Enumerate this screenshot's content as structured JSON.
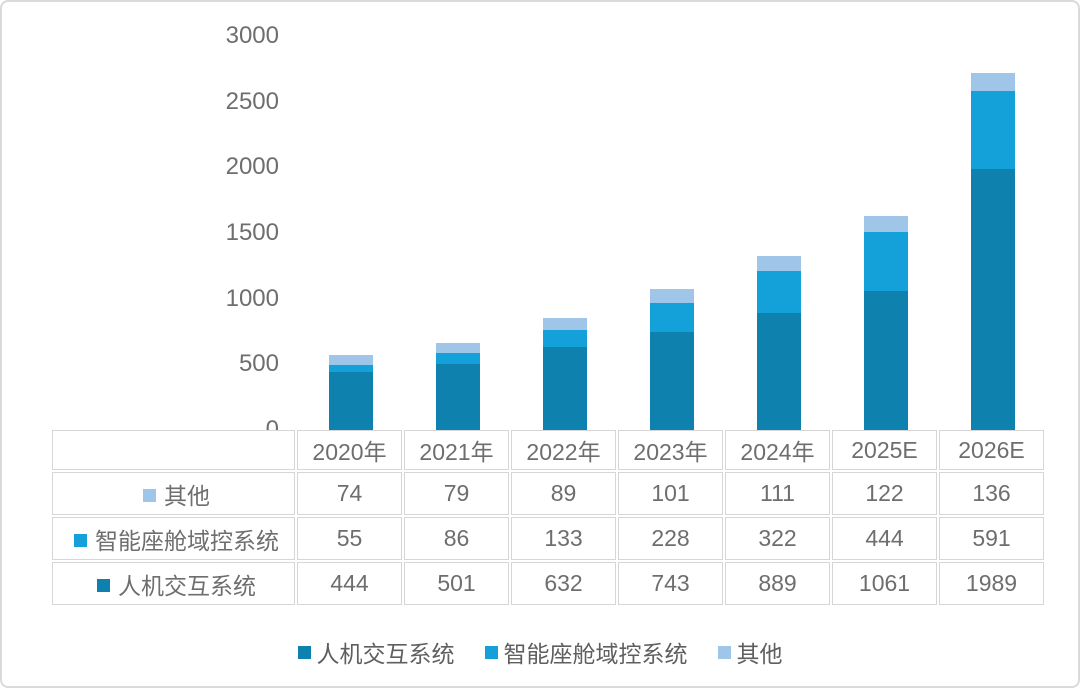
{
  "colors": {
    "series_hmi": "#0e81ae",
    "series_cockpit": "#14a0d9",
    "series_other": "#9fc5e8",
    "axis_text": "#6e6e6e",
    "table_border": "#d6d6d6",
    "frame_border": "#dadada"
  },
  "chart_data": {
    "type": "bar",
    "stacked": true,
    "title": "",
    "xlabel": "",
    "ylabel": "",
    "categories": [
      "2020年",
      "2021年",
      "2022年",
      "2023年",
      "2024年",
      "2025E",
      "2026E"
    ],
    "series": [
      {
        "name": "人机交互系统",
        "key": "hmi",
        "color": "#0e81ae",
        "values": [
          444,
          501,
          632,
          743,
          889,
          1061,
          1989
        ]
      },
      {
        "name": "智能座舱域控系统",
        "key": "cockpit",
        "color": "#14a0d9",
        "values": [
          55,
          86,
          133,
          228,
          322,
          444,
          591
        ]
      },
      {
        "name": "其他",
        "key": "other",
        "color": "#9fc5e8",
        "values": [
          74,
          79,
          89,
          101,
          111,
          122,
          136
        ]
      }
    ],
    "ylim": [
      0,
      3000
    ],
    "yticks": [
      0,
      500,
      1000,
      1500,
      2000,
      2500,
      3000
    ],
    "grid": false,
    "legend_position": "bottom",
    "legend_order": [
      "人机交互系统",
      "智能座舱域控系统",
      "其他"
    ],
    "table_row_order": [
      "其他",
      "智能座舱域控系统",
      "人机交互系统"
    ]
  }
}
